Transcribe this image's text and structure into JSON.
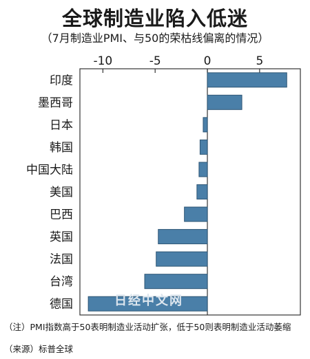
{
  "title": "全球制造业陷入低迷",
  "subtitle": "（7月制造业PMI、与50的荣枯线偏离的情况）",
  "chart_data": {
    "type": "bar",
    "orientation": "horizontal",
    "categories": [
      "印度",
      "墨西哥",
      "日本",
      "韩国",
      "中国大陆",
      "美国",
      "巴西",
      "英国",
      "法国",
      "台湾",
      "德国"
    ],
    "values": [
      7.6,
      3.3,
      -0.4,
      -0.7,
      -0.8,
      -1.0,
      -2.2,
      -4.7,
      -4.9,
      -6.0,
      -11.4
    ],
    "x_ticks": [
      -10,
      -5,
      0,
      5
    ],
    "xlim": [
      -12.2,
      8.9
    ],
    "bar_color": "#4a7fa8",
    "grid": false
  },
  "notes": {
    "note1": "（注）PMI指数高于50表明制造业活动扩张，低于50则表明制造业活动萎缩",
    "note2": "（来源）标普全球"
  },
  "watermark": "日经中文网"
}
